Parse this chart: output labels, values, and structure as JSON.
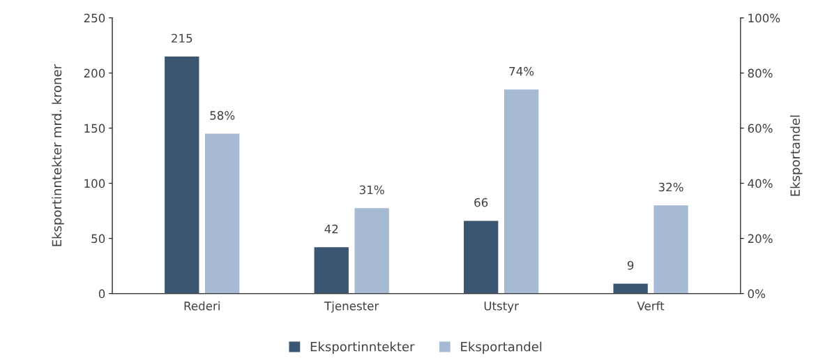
{
  "chart_data": {
    "type": "bar",
    "categories": [
      "Rederi",
      "Tjenester",
      "Utstyr",
      "Verft"
    ],
    "ylabel": "Eksportinntekter mrd. kroner",
    "y2label": "Eksportandel",
    "ylim": [
      0,
      250
    ],
    "yticks": [
      0,
      50,
      100,
      150,
      200,
      250
    ],
    "y2lim": [
      0,
      100
    ],
    "y2ticks": [
      {
        "value": 0,
        "label": "0%"
      },
      {
        "value": 20,
        "label": "20%"
      },
      {
        "value": 40,
        "label": "40%"
      },
      {
        "value": 60,
        "label": "60%"
      },
      {
        "value": 80,
        "label": "80%"
      },
      {
        "value": 100,
        "label": "100%"
      }
    ],
    "series": [
      {
        "name": "Eksportinntekter",
        "color": "#3a5673",
        "values": [
          215,
          42,
          66,
          9
        ],
        "value_labels": [
          "215",
          "42",
          "66",
          "9"
        ]
      },
      {
        "name": "Eksportandel",
        "color": "#a6bbd3",
        "values": [
          58,
          31,
          74,
          32
        ],
        "axis": "y2",
        "value_labels": [
          "58%",
          "31%",
          "74%",
          "32%"
        ]
      }
    ],
    "grid": false,
    "legend": "bottom"
  }
}
